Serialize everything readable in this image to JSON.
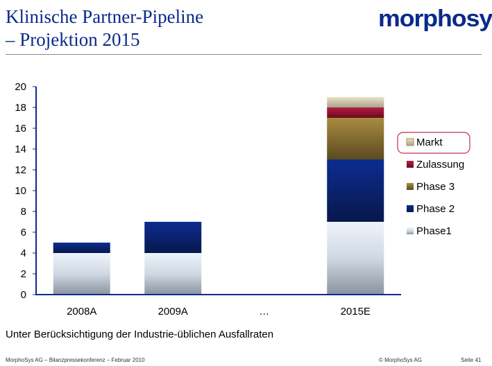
{
  "header": {
    "title_line1": "Klinische Partner-Pipeline",
    "title_line2": "– Projektion 2015",
    "logo": "morphosys"
  },
  "chart_data": {
    "type": "bar",
    "stacked": true,
    "categories": [
      "2008A",
      "2009A",
      "…",
      "2015E"
    ],
    "series": [
      {
        "name": "Phase1",
        "color": "#c8d4e0",
        "values": [
          4,
          4,
          null,
          7
        ]
      },
      {
        "name": "Phase 2",
        "color": "#0a2a8a",
        "values": [
          1,
          3,
          null,
          6
        ]
      },
      {
        "name": "Phase 3",
        "color": "#8a7030",
        "values": [
          0,
          0,
          null,
          4
        ]
      },
      {
        "name": "Zulassung",
        "color": "#a01a38",
        "values": [
          0,
          0,
          null,
          1
        ]
      },
      {
        "name": "Markt",
        "color": "#d8d0b0",
        "values": [
          0,
          0,
          null,
          1
        ]
      }
    ],
    "ylim": [
      0,
      20
    ],
    "yticks": [
      0,
      2,
      4,
      6,
      8,
      10,
      12,
      14,
      16,
      18,
      20
    ],
    "legend": {
      "placement": "right",
      "order": [
        "Markt",
        "Zulassung",
        "Phase 3",
        "Phase 2",
        "Phase1"
      ],
      "highlighted": "Markt",
      "highlight_color": "#c0304a"
    },
    "grid": false
  },
  "note": "Unter Berücksichtigung der Industrie-üblichen Ausfallraten",
  "footer": {
    "left": "MorphoSys AG  –  Bilanzpressekonferenz  –  Februar 2010",
    "center": "© MorphoSys AG",
    "right": "Seite 41"
  }
}
